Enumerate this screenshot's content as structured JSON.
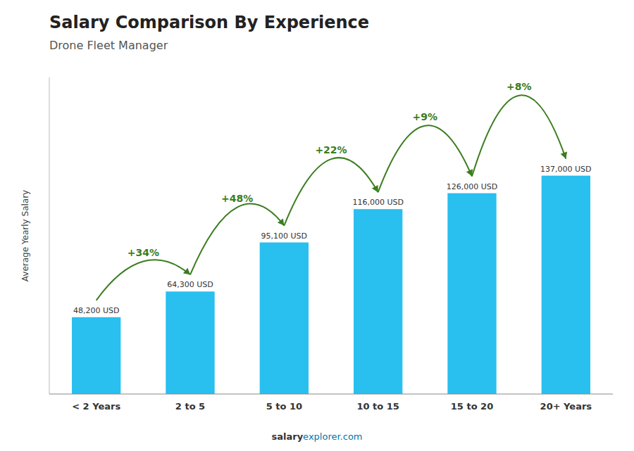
{
  "chart_data": {
    "type": "bar",
    "title": "Salary Comparison By Experience",
    "subtitle": "Drone Fleet Manager",
    "ylabel": "Average Yearly Salary",
    "categories": [
      "< 2 Years",
      "2 to 5",
      "5 to 10",
      "10 to 15",
      "15 to 20",
      "20+ Years"
    ],
    "values": [
      48200,
      64300,
      95100,
      116000,
      126000,
      137000
    ],
    "value_labels": [
      "48,200 USD",
      "64,300 USD",
      "95,100 USD",
      "116,000 USD",
      "126,000 USD",
      "137,000 USD"
    ],
    "data_labels": true,
    "annotations": [
      "+34%",
      "+48%",
      "+22%",
      "+9%",
      "+8%"
    ],
    "footer": [
      "salary",
      "explorer.com"
    ],
    "color": "#29bfef",
    "ylim": [
      0,
      198650
    ],
    "tick_labels": "x",
    "grid": false
  }
}
